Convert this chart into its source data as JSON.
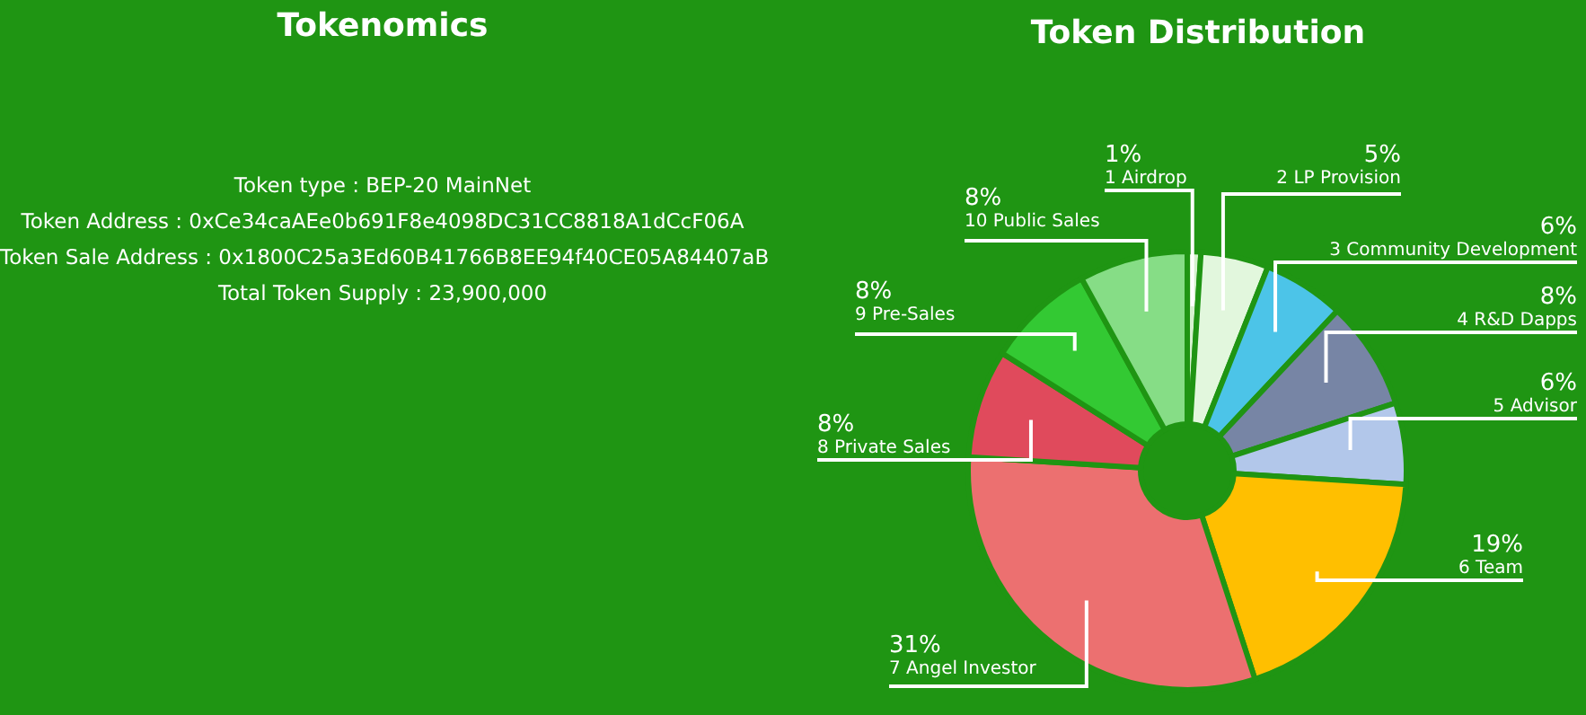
{
  "chart_data": [
    {
      "type": "other",
      "title": "Tokenomics",
      "annotations": [
        "Token type : BEP-20 MainNet",
        "Token Address : 0xCe34caAEe0b691F8e4098DC31CC8818A1dCcF06A",
        "Token Sale Address : 0x1800C25a3Ed60B41766B8EE94f40CE05A84407aB",
        "Total Token Supply : 23,900,000"
      ]
    },
    {
      "type": "donut",
      "title": "Token Distribution",
      "categories": [
        "1 Airdrop",
        "2 LP Provision",
        "3 Community Development",
        "4 R&D Dapps",
        "5 Advisor",
        "6 Team",
        "7 Angel Investor",
        "8 Private Sales",
        "9 Pre-Sales",
        "10 Public Sales"
      ],
      "values": [
        1,
        5,
        6,
        8,
        6,
        19,
        31,
        8,
        8,
        8
      ],
      "value_labels": [
        "1%",
        "5%",
        "6%",
        "8%",
        "6%",
        "19%",
        "31%",
        "8%",
        "8%",
        "8%"
      ],
      "colors": [
        "#d6f2cf",
        "#e2f7dd",
        "#4cc4e8",
        "#7785a5",
        "#b2c7ea",
        "#ffbf00",
        "#ec7070",
        "#e04a5c",
        "#33c933",
        "#86dd86"
      ]
    }
  ]
}
